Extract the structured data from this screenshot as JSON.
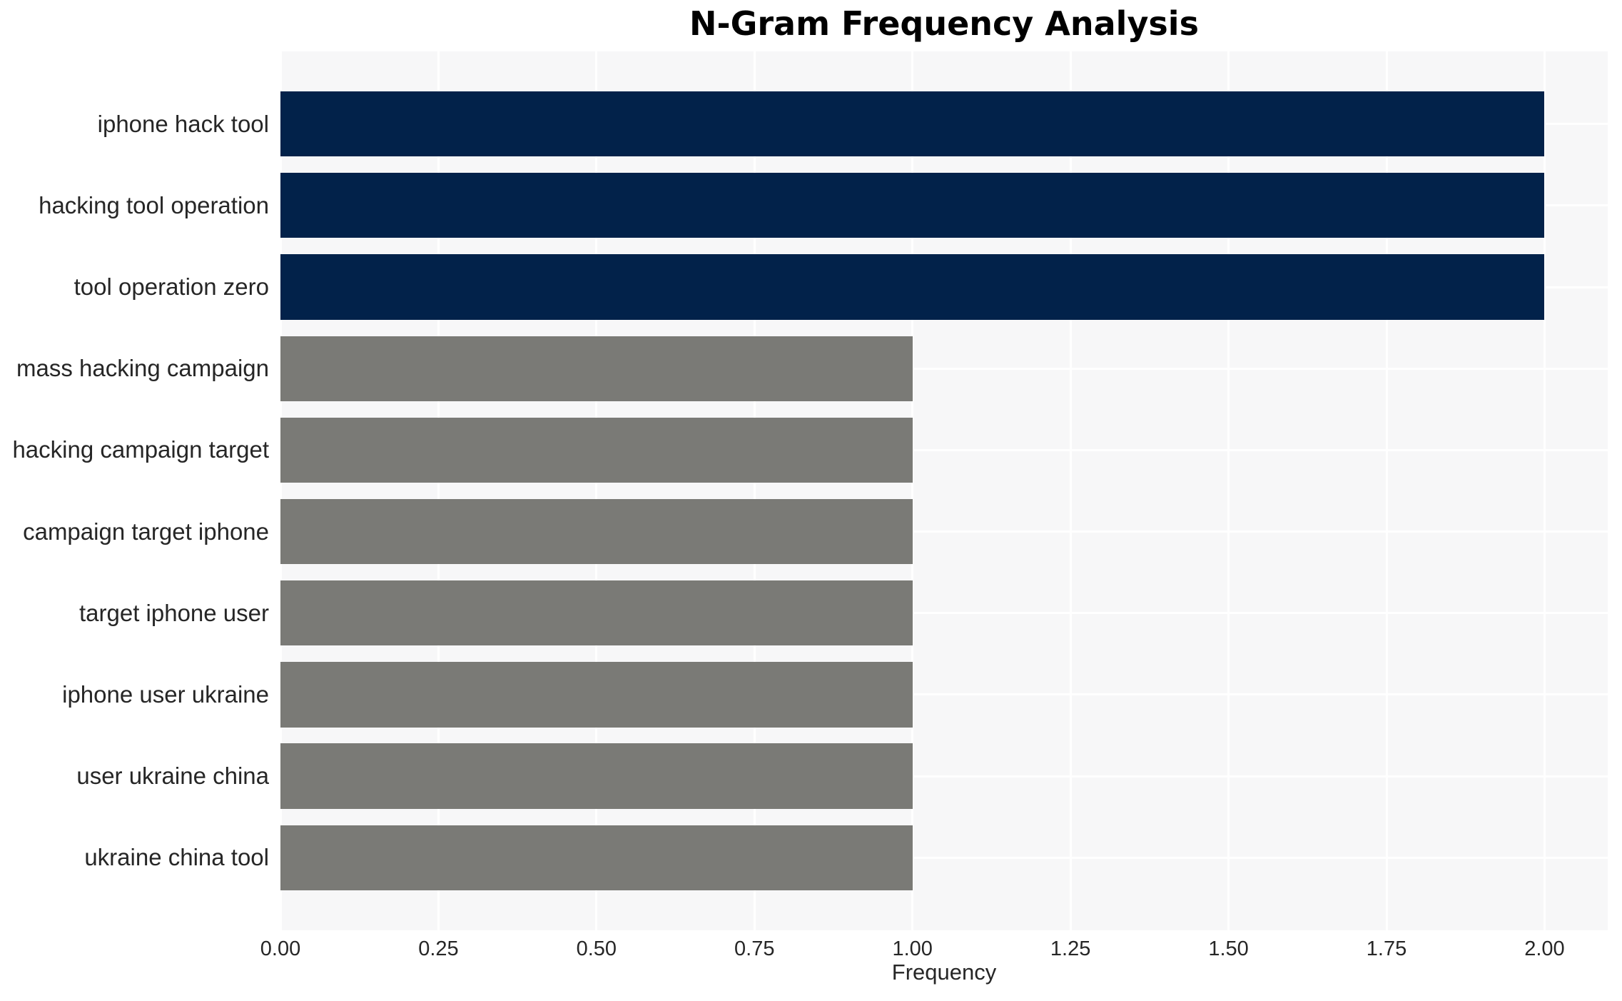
{
  "chart_data": {
    "type": "bar",
    "orientation": "horizontal",
    "title": "N-Gram Frequency Analysis",
    "xlabel": "Frequency",
    "ylabel": "",
    "categories": [
      "iphone hack tool",
      "hacking tool operation",
      "tool operation zero",
      "mass hacking campaign",
      "hacking campaign target",
      "campaign target iphone",
      "target iphone user",
      "iphone user ukraine",
      "user ukraine china",
      "ukraine china tool"
    ],
    "values": [
      2,
      2,
      2,
      1,
      1,
      1,
      1,
      1,
      1,
      1
    ],
    "bar_colors": [
      "#02224a",
      "#02224a",
      "#02224a",
      "#7a7a76",
      "#7a7a76",
      "#7a7a76",
      "#7a7a76",
      "#7a7a76",
      "#7a7a76",
      "#7a7a76"
    ],
    "xlim": [
      0,
      2.1
    ],
    "ylim": [
      -0.89,
      9.89
    ],
    "bar_height_units": 0.8,
    "xticks": [
      0,
      0.25,
      0.5,
      0.75,
      1,
      1.25,
      1.5,
      1.75,
      2
    ],
    "xtick_labels": [
      "0.00",
      "0.25",
      "0.50",
      "0.75",
      "1.00",
      "1.25",
      "1.50",
      "1.75",
      "2.00"
    ],
    "grid": true,
    "grid_color": "#ffffff",
    "plot_bg": "#f7f7f8",
    "text_color": "#262626",
    "legend": false
  }
}
